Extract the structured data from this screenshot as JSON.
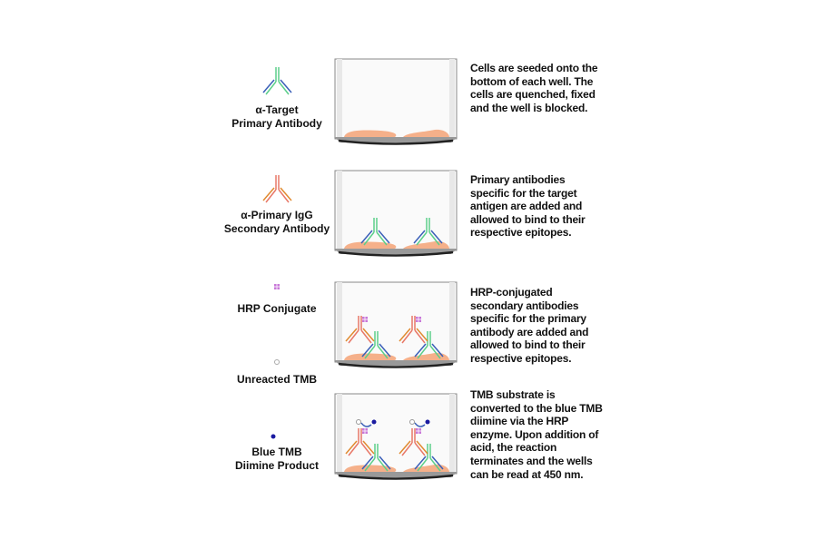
{
  "legend": {
    "primary_antibody": [
      "α-Target",
      "Primary Antibody"
    ],
    "secondary_antibody": [
      "α-Primary IgG",
      "Secondary Antibody"
    ],
    "hrp": "HRP Conjugate",
    "unreacted_tmb": "Unreacted TMB",
    "blue_tmb": [
      "Blue TMB",
      "Diimine Product"
    ]
  },
  "steps": [
    {
      "description": "Cells are seeded onto the bottom of each well. The cells are quenched, fixed and the well is blocked."
    },
    {
      "description": "Primary antibodies specific for the target antigen are added and allowed to bind to their respective epitopes."
    },
    {
      "description": "HRP-conjugated secondary antibodies specific for the primary antibody are added and allowed to bind to their respective epitopes."
    },
    {
      "description": "TMB substrate is converted to the blue TMB diimine via the HRP enzyme. Upon addition of acid, the reaction terminates and the wells can be read at 450 nm."
    }
  ],
  "colors": {
    "primary_stem": "#5ccf8a",
    "primary_outer": "#3a5fb8",
    "secondary_stem": "#e87868",
    "secondary_outer": "#e08a30",
    "hrp": "#c878d8",
    "cell": "#f5b08a",
    "blue_tmb": "#1a1aa0"
  }
}
